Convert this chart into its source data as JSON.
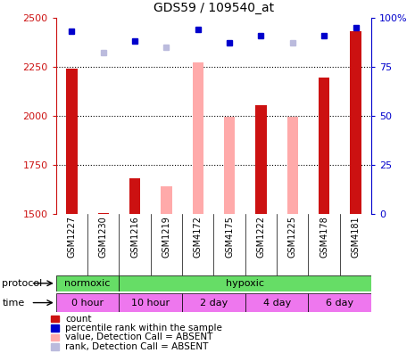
{
  "title": "GDS59 / 109540_at",
  "samples": [
    "GSM1227",
    "GSM1230",
    "GSM1216",
    "GSM1219",
    "GSM4172",
    "GSM4175",
    "GSM1222",
    "GSM1225",
    "GSM4178",
    "GSM4181"
  ],
  "count_values": [
    2240,
    1502,
    1680,
    null,
    null,
    null,
    2055,
    null,
    2195,
    2430
  ],
  "count_absent_values": [
    null,
    null,
    null,
    1640,
    2270,
    1995,
    null,
    1995,
    null,
    null
  ],
  "rank_values": [
    93,
    null,
    88,
    null,
    94,
    87,
    91,
    null,
    91,
    95
  ],
  "rank_absent_values": [
    null,
    82,
    null,
    85,
    null,
    null,
    null,
    87,
    null,
    null
  ],
  "ylim_left": [
    1500,
    2500
  ],
  "ylim_right": [
    0,
    100
  ],
  "yticks_left": [
    1500,
    1750,
    2000,
    2250,
    2500
  ],
  "yticks_right": [
    0,
    25,
    50,
    75,
    100
  ],
  "ytick_labels_right": [
    "0",
    "25",
    "50",
    "75",
    "100%"
  ],
  "color_count": "#cc1111",
  "color_rank": "#0000cc",
  "color_count_absent": "#ffaaaa",
  "color_rank_absent": "#bbbbdd",
  "color_spine_left": "#cc1111",
  "color_spine_right": "#0000cc",
  "protocol_labels": [
    "normoxic",
    "hypoxic"
  ],
  "protocol_color": "#66dd66",
  "time_labels": [
    "0 hour",
    "10 hour",
    "2 day",
    "4 day",
    "6 day"
  ],
  "time_color": "#ee77ee",
  "legend_items": [
    {
      "label": "count",
      "color": "#cc1111"
    },
    {
      "label": "percentile rank within the sample",
      "color": "#0000cc"
    },
    {
      "label": "value, Detection Call = ABSENT",
      "color": "#ffaaaa"
    },
    {
      "label": "rank, Detection Call = ABSENT",
      "color": "#bbbbdd"
    }
  ],
  "bar_width": 0.35,
  "chart_bg": "#ffffff",
  "fig_bg": "#ffffff",
  "marker_size": 5
}
